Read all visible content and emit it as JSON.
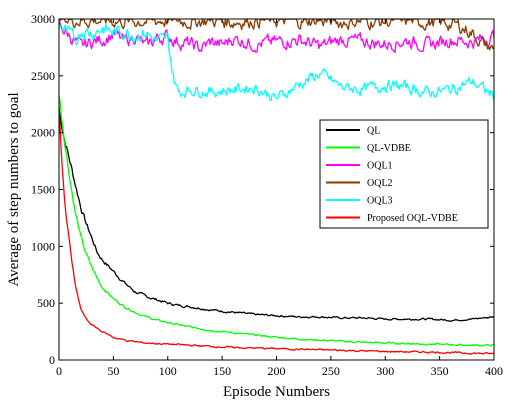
{
  "chart_data": {
    "type": "line",
    "title": "",
    "xlabel": "Episode Numbers",
    "ylabel": "Average of step numbers to goal",
    "xlim": [
      0,
      400
    ],
    "ylim": [
      0,
      3000
    ],
    "xticks": [
      0,
      50,
      100,
      150,
      200,
      250,
      300,
      350,
      400
    ],
    "yticks": [
      0,
      500,
      1000,
      1500,
      2000,
      2500,
      3000
    ],
    "grid": false,
    "legend_position": "right",
    "series": [
      {
        "name": "QL",
        "color": "#000000",
        "x": [
          0,
          5,
          10,
          15,
          20,
          25,
          30,
          35,
          40,
          50,
          60,
          70,
          80,
          90,
          100,
          110,
          120,
          140,
          160,
          180,
          200,
          220,
          240,
          260,
          280,
          300,
          320,
          340,
          360,
          380,
          400
        ],
        "y": [
          2200,
          1950,
          1750,
          1550,
          1350,
          1200,
          1080,
          950,
          880,
          780,
          680,
          600,
          560,
          530,
          500,
          480,
          470,
          440,
          420,
          400,
          390,
          380,
          380,
          370,
          370,
          360,
          360,
          360,
          350,
          360,
          380
        ]
      },
      {
        "name": "QL-VDBE",
        "color": "#00ff00",
        "x": [
          0,
          5,
          10,
          15,
          20,
          25,
          30,
          35,
          40,
          50,
          60,
          70,
          80,
          90,
          100,
          120,
          140,
          160,
          180,
          200,
          220,
          240,
          260,
          280,
          300,
          320,
          340,
          360,
          380,
          400
        ],
        "y": [
          2330,
          1950,
          1600,
          1300,
          1080,
          930,
          820,
          720,
          640,
          540,
          470,
          420,
          380,
          350,
          330,
          290,
          260,
          240,
          220,
          200,
          185,
          175,
          165,
          155,
          150,
          145,
          140,
          135,
          130,
          130
        ]
      },
      {
        "name": "OQL1",
        "color": "#ff00ff",
        "x": [
          0,
          10,
          20,
          30,
          40,
          50,
          60,
          70,
          80,
          90,
          100,
          110,
          120,
          130,
          140,
          150,
          160,
          180,
          200,
          220,
          240,
          260,
          280,
          300,
          320,
          340,
          360,
          380,
          400
        ],
        "y": [
          2950,
          2850,
          2750,
          2800,
          2820,
          2870,
          2800,
          2850,
          2760,
          2830,
          2850,
          2800,
          2780,
          2740,
          2800,
          2770,
          2830,
          2780,
          2800,
          2820,
          2760,
          2820,
          2800,
          2780,
          2810,
          2770,
          2820,
          2800,
          2850
        ]
      },
      {
        "name": "OQL2",
        "color": "#8b3a00",
        "x": [
          0,
          20,
          40,
          60,
          80,
          100,
          120,
          140,
          160,
          180,
          200,
          220,
          240,
          260,
          280,
          300,
          320,
          340,
          360,
          370,
          380,
          390,
          400
        ],
        "y": [
          3000,
          2990,
          2990,
          2980,
          2985,
          2990,
          2980,
          2990,
          2975,
          2990,
          2985,
          2980,
          2990,
          2970,
          2985,
          2975,
          2990,
          2970,
          2960,
          2930,
          2880,
          2780,
          2730
        ]
      },
      {
        "name": "OQL3",
        "color": "#00ffff",
        "x": [
          0,
          5,
          10,
          15,
          20,
          30,
          40,
          50,
          60,
          70,
          80,
          90,
          100,
          105,
          110,
          120,
          130,
          140,
          160,
          180,
          200,
          220,
          240,
          260,
          280,
          300,
          320,
          340,
          360,
          380,
          400
        ],
        "y": [
          2960,
          2900,
          2860,
          2800,
          2900,
          2880,
          2920,
          2880,
          2890,
          2860,
          2880,
          2800,
          2820,
          2500,
          2350,
          2380,
          2370,
          2360,
          2380,
          2400,
          2300,
          2420,
          2520,
          2400,
          2380,
          2420,
          2400,
          2350,
          2380,
          2450,
          2320
        ]
      },
      {
        "name": "Proposed OQL-VDBE",
        "color": "#ff0000",
        "x": [
          0,
          3,
          6,
          10,
          15,
          20,
          25,
          30,
          40,
          50,
          60,
          70,
          80,
          100,
          120,
          140,
          160,
          180,
          200,
          220,
          240,
          260,
          280,
          300,
          320,
          340,
          360,
          380,
          400
        ],
        "y": [
          2200,
          1700,
          1300,
          1000,
          650,
          450,
          360,
          310,
          250,
          200,
          175,
          160,
          150,
          140,
          130,
          120,
          110,
          105,
          100,
          95,
          90,
          85,
          80,
          75,
          72,
          70,
          65,
          60,
          55
        ]
      }
    ]
  }
}
